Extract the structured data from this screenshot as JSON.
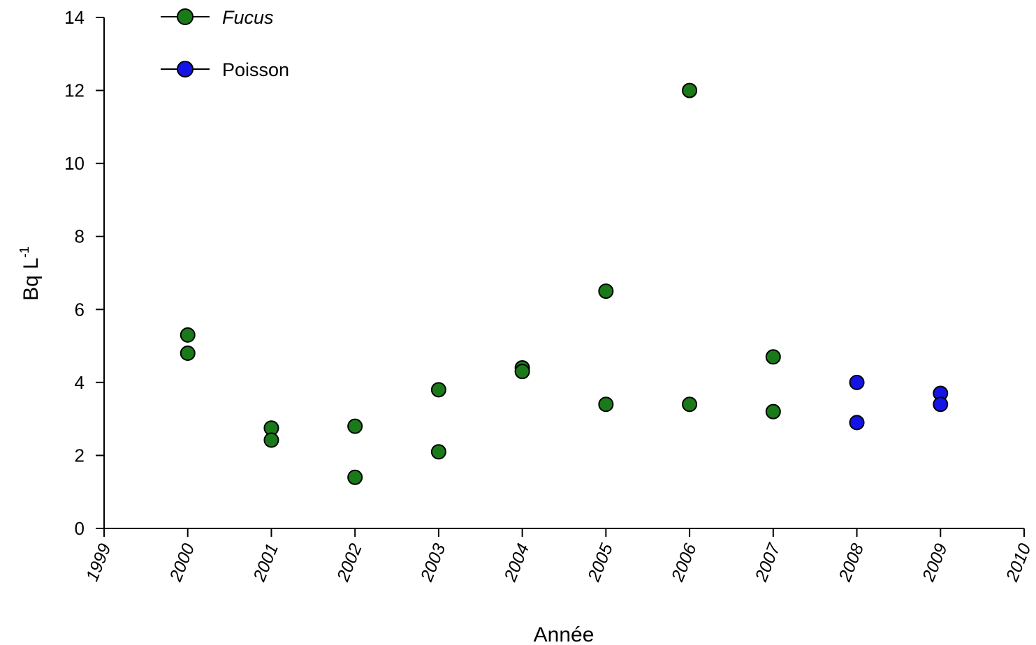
{
  "chart_data": {
    "type": "scatter",
    "xlabel": "Année",
    "ylabel": "Bq L",
    "ylabel_superscript": "-1",
    "xlim": [
      1999,
      2010
    ],
    "ylim": [
      0,
      14
    ],
    "xticks": [
      1999,
      2000,
      2001,
      2002,
      2003,
      2004,
      2005,
      2006,
      2007,
      2008,
      2009,
      2010
    ],
    "yticks": [
      0,
      2,
      4,
      6,
      8,
      10,
      12,
      14
    ],
    "grid": false,
    "legend_position": "top-left",
    "series": [
      {
        "name": "Fucus",
        "italic": true,
        "color": "#1a7a1a",
        "points": [
          {
            "x": 2000,
            "y": 5.3
          },
          {
            "x": 2000,
            "y": 4.8
          },
          {
            "x": 2001,
            "y": 2.75
          },
          {
            "x": 2001,
            "y": 2.42
          },
          {
            "x": 2002,
            "y": 2.8
          },
          {
            "x": 2002,
            "y": 1.4
          },
          {
            "x": 2003,
            "y": 3.8
          },
          {
            "x": 2003,
            "y": 2.1
          },
          {
            "x": 2004,
            "y": 4.4
          },
          {
            "x": 2004,
            "y": 4.3
          },
          {
            "x": 2005,
            "y": 6.5
          },
          {
            "x": 2005,
            "y": 3.4
          },
          {
            "x": 2006,
            "y": 12.0
          },
          {
            "x": 2006,
            "y": 3.4
          },
          {
            "x": 2007,
            "y": 4.7
          },
          {
            "x": 2007,
            "y": 3.2
          }
        ]
      },
      {
        "name": "Poisson",
        "italic": false,
        "color": "#1414e6",
        "points": [
          {
            "x": 2008,
            "y": 4.0
          },
          {
            "x": 2008,
            "y": 2.9
          },
          {
            "x": 2009,
            "y": 3.7
          },
          {
            "x": 2009,
            "y": 3.4
          }
        ]
      }
    ]
  }
}
